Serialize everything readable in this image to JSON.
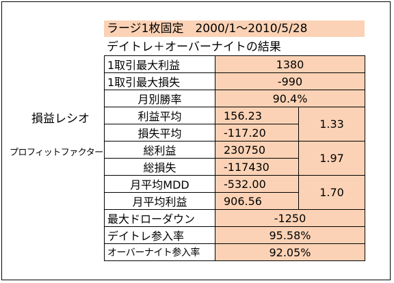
{
  "title_line1": "ラージ1枚固定　2000/1～2010/5/28",
  "title_line2": "デイトレ＋オーバーナイトの結果",
  "side_label_ratio": "損益レシオ",
  "side_label_pf": "プロフィットファクター",
  "rows": {
    "max_profit": {
      "label": "1取引最大利益",
      "value": "1380"
    },
    "max_loss": {
      "label": "1取引最大損失",
      "value": "-990"
    },
    "monthly_winrate": {
      "label": "月別勝率",
      "value": "90.4%"
    },
    "avg_profit": {
      "label": "利益平均",
      "value": "156.23"
    },
    "avg_loss": {
      "label": "損失平均",
      "value": "-117.20"
    },
    "pl_ratio": "1.33",
    "total_profit": {
      "label": "総利益",
      "value": "230750"
    },
    "total_loss": {
      "label": "総損失",
      "value": "-117430"
    },
    "profit_factor": "1.97",
    "monthly_avg_mdd": {
      "label": "月平均MDD",
      "value": "-532.00"
    },
    "monthly_avg_profit": {
      "label": "月平均利益",
      "value": "906.56"
    },
    "mdd_ratio": "1.70",
    "max_drawdown": {
      "label": "最大ドローダウン",
      "value": "-1250"
    },
    "daytrade_entry_rate": {
      "label": "デイトレ参入率",
      "value": "95.58%"
    },
    "overnight_entry_rate": {
      "label": "オーバーナイト参入率",
      "value": "92.05%"
    }
  }
}
